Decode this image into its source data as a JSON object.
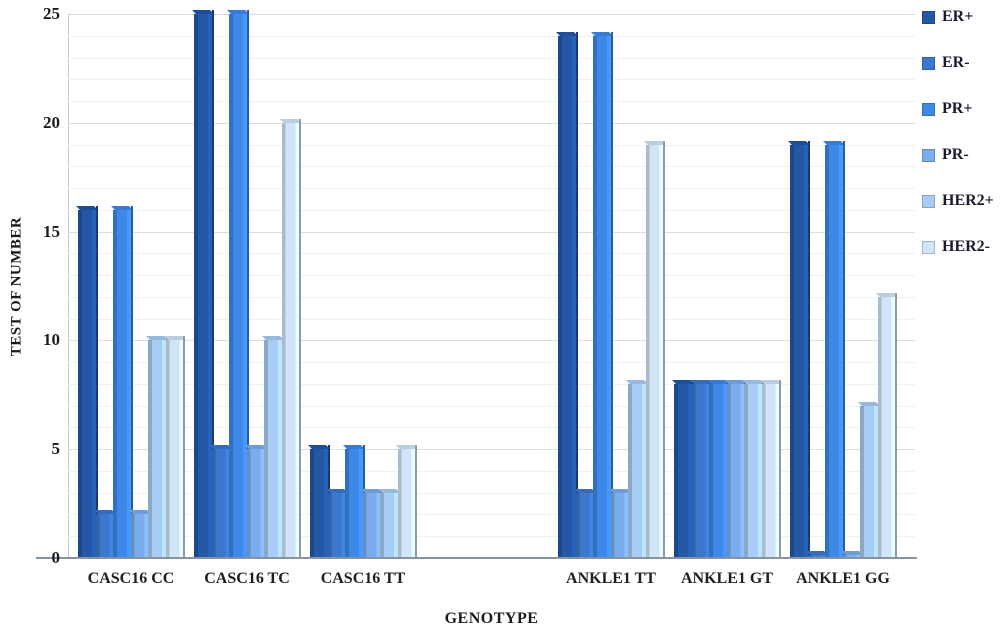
{
  "chart_data": {
    "type": "bar",
    "title": "",
    "xlabel": "GENOTYPE",
    "ylabel": "TEST OF NUMBER",
    "ylim": [
      0,
      25
    ],
    "yticks": [
      0,
      5,
      10,
      15,
      20,
      25
    ],
    "minor_grid_step": 1,
    "grid": true,
    "legend_position": "right",
    "categories": [
      "CASC16 CC",
      "CASC16 TC",
      "CASC16 TT",
      "ANKLE1 TT",
      "ANKLE1 GT",
      "ANKLE1 GG"
    ],
    "category_spacer_after_index": 2,
    "series": [
      {
        "name": "ER+",
        "color": "#2457a5",
        "values": [
          16,
          25,
          5,
          24,
          8,
          19
        ]
      },
      {
        "name": "ER-",
        "color": "#3b77cc",
        "values": [
          2,
          5,
          3,
          3,
          8,
          0
        ]
      },
      {
        "name": "PR+",
        "color": "#3e89e8",
        "values": [
          16,
          25,
          5,
          24,
          8,
          19
        ]
      },
      {
        "name": "PR-",
        "color": "#7badee",
        "values": [
          2,
          5,
          3,
          3,
          8,
          0
        ]
      },
      {
        "name": "HER2+",
        "color": "#a8cdf4",
        "values": [
          10,
          10,
          3,
          8,
          8,
          7
        ]
      },
      {
        "name": "HER2-",
        "color": "#d1e4f8",
        "values": [
          10,
          20,
          5,
          19,
          8,
          12
        ]
      }
    ]
  }
}
